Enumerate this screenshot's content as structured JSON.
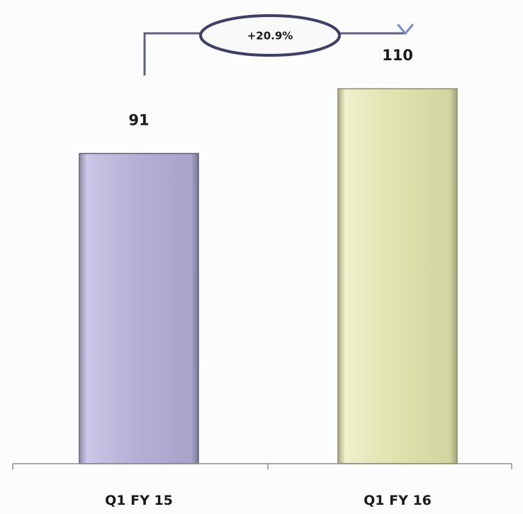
{
  "chart_data": {
    "type": "bar",
    "categories": [
      "Q1 FY 15",
      "Q1 FY 16"
    ],
    "values": [
      91,
      110
    ],
    "value_labels": [
      "91",
      "110"
    ],
    "colors": [
      "#b7b3d6",
      "#e1e4b2"
    ],
    "title": "",
    "xlabel": "",
    "ylabel": "",
    "ylim": [
      0,
      130
    ],
    "grid": false,
    "legend": "none",
    "annotation": {
      "text": "+20.9%",
      "from_category": "Q1 FY 15",
      "to_category": "Q1 FY 16",
      "line_color": "#5c5f8c",
      "arrow_color": "#6f8fc8"
    }
  }
}
